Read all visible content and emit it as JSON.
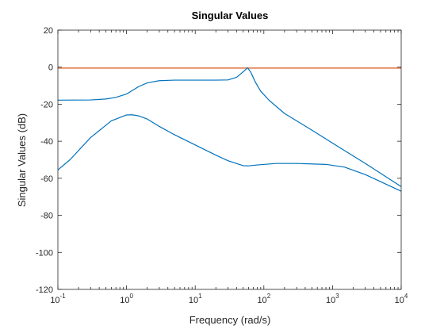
{
  "chart_data": {
    "type": "line",
    "title": "Singular Values",
    "xlabel": "Frequency (rad/s)",
    "ylabel": "Singular Values (dB)",
    "x_scale": "log",
    "xlim": [
      0.1,
      10000
    ],
    "ylim": [
      -120,
      20
    ],
    "x_ticks": [
      {
        "value": 0.1,
        "base": "10",
        "exp": "-1"
      },
      {
        "value": 1,
        "base": "10",
        "exp": "0"
      },
      {
        "value": 10,
        "base": "10",
        "exp": "1"
      },
      {
        "value": 100,
        "base": "10",
        "exp": "2"
      },
      {
        "value": 1000,
        "base": "10",
        "exp": "3"
      },
      {
        "value": 10000,
        "base": "10",
        "exp": "4"
      }
    ],
    "y_ticks": [
      {
        "value": 20,
        "label": "20"
      },
      {
        "value": 0,
        "label": "0"
      },
      {
        "value": -20,
        "label": "-20"
      },
      {
        "value": -40,
        "label": "-40"
      },
      {
        "value": -60,
        "label": "-60"
      },
      {
        "value": -80,
        "label": "-80"
      },
      {
        "value": -100,
        "label": "-100"
      },
      {
        "value": -120,
        "label": "-120"
      }
    ],
    "grid": false,
    "series": [
      {
        "color": "#D95319",
        "points": [
          [
            0.1,
            -0.5
          ],
          [
            10000,
            -0.5
          ]
        ]
      },
      {
        "color": "#0072BD",
        "points": [
          [
            0.1,
            -17.8
          ],
          [
            0.3,
            -17.7
          ],
          [
            0.5,
            -17.2
          ],
          [
            0.7,
            -16.3
          ],
          [
            1,
            -14.5
          ],
          [
            1.5,
            -10.5
          ],
          [
            2,
            -8.5
          ],
          [
            3,
            -7.3
          ],
          [
            5,
            -7
          ],
          [
            10,
            -7
          ],
          [
            20,
            -7
          ],
          [
            30,
            -6.9
          ],
          [
            40,
            -5.5
          ],
          [
            50,
            -2.5
          ],
          [
            58,
            -0.3
          ],
          [
            65,
            -3
          ],
          [
            75,
            -8
          ],
          [
            90,
            -13
          ],
          [
            120,
            -18
          ],
          [
            200,
            -25
          ],
          [
            500,
            -34
          ],
          [
            1000,
            -41
          ],
          [
            3000,
            -52
          ],
          [
            10000,
            -64.5
          ]
        ]
      },
      {
        "color": "#0072BD",
        "points": [
          [
            0.1,
            -55.5
          ],
          [
            0.15,
            -50
          ],
          [
            0.3,
            -38
          ],
          [
            0.6,
            -29
          ],
          [
            1,
            -25.8
          ],
          [
            1.2,
            -25.7
          ],
          [
            1.5,
            -26.3
          ],
          [
            2,
            -28
          ],
          [
            3,
            -32
          ],
          [
            5,
            -36.5
          ],
          [
            10,
            -42
          ],
          [
            20,
            -47.5
          ],
          [
            30,
            -50.5
          ],
          [
            50,
            -53.2
          ],
          [
            60,
            -53.3
          ],
          [
            80,
            -52.8
          ],
          [
            150,
            -52
          ],
          [
            300,
            -52
          ],
          [
            800,
            -52.5
          ],
          [
            1500,
            -54
          ],
          [
            3000,
            -58
          ],
          [
            10000,
            -67
          ]
        ]
      }
    ]
  }
}
